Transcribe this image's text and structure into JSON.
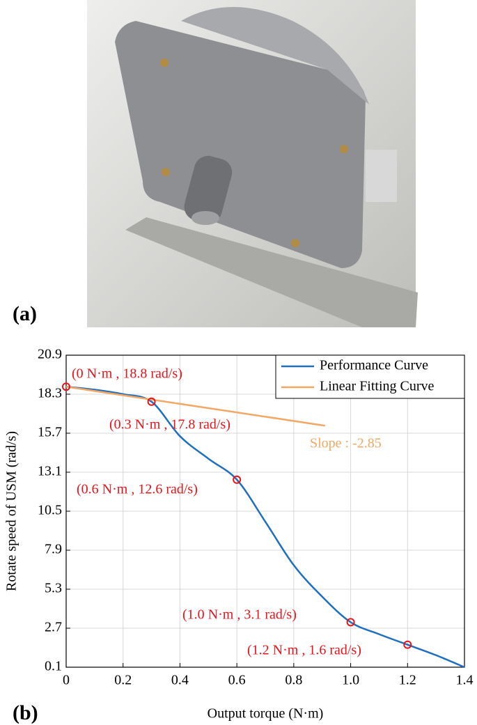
{
  "panel_labels": [
    "(a)",
    "(b)"
  ],
  "chart_data": {
    "type": "line",
    "x_label": "Output torque (N·m)",
    "y_label": "Rotate speed of USM  (rad/s)",
    "xlim": [
      0,
      1.4
    ],
    "xticks": [
      0,
      0.2,
      0.4,
      0.6,
      0.8,
      {
        "value": 1,
        "label": "1.0"
      },
      1.2,
      1.4
    ],
    "ylim": [
      0.1,
      20.9
    ],
    "yticks": [
      0.1,
      2.7,
      5.3,
      7.9,
      10.5,
      13.1,
      15.7,
      18.3,
      20.9
    ],
    "grid": true,
    "legend": "top-right",
    "series": [
      {
        "name": "Performance Curve",
        "color": "#1f6fbf",
        "x": [
          0,
          0.1,
          0.2,
          0.3,
          0.4,
          0.5,
          0.6,
          0.7,
          0.8,
          0.9,
          1.0,
          1.1,
          1.2,
          1.3,
          1.4
        ],
        "values": [
          18.8,
          18.6,
          18.3,
          17.8,
          15.5,
          14.0,
          12.6,
          9.8,
          6.9,
          4.8,
          3.1,
          2.3,
          1.6,
          0.9,
          0.1
        ]
      },
      {
        "name": "Linear Fitting Curve",
        "color": "#f2a765",
        "x": [
          0,
          0.91
        ],
        "values": [
          18.8,
          16.2
        ]
      }
    ],
    "markers": {
      "color": "#e8141a",
      "x": [
        0,
        0.3,
        0.6,
        1.0,
        1.2
      ],
      "values": [
        18.8,
        17.8,
        12.6,
        3.1,
        1.6
      ],
      "labels": [
        "(0 N·m , 18.8 rad/s)",
        "(0.3 N·m , 17.8 rad/s)",
        "(0.6 N·m , 12.6 rad/s)",
        "(1.0 N·m , 3.1 rad/s)",
        "(1.2 N·m , 1.6 rad/s)"
      ]
    },
    "annotations": [
      {
        "text": "Slope : -2.85",
        "color": "#f2a765"
      }
    ]
  }
}
